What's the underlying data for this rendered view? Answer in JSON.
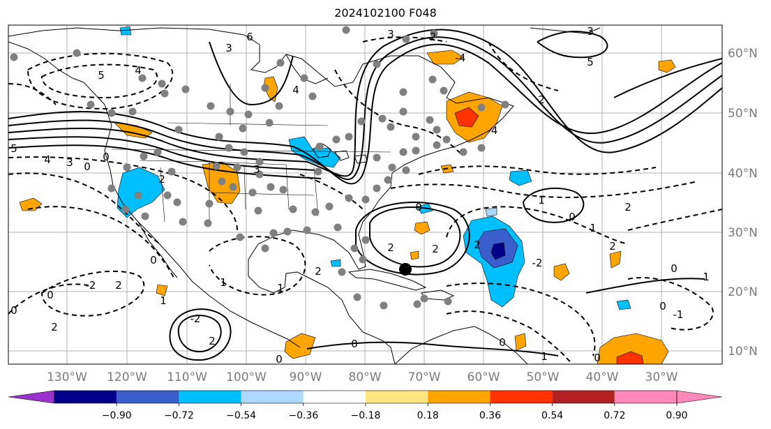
{
  "title": "2024102100 F048",
  "colors": {
    "land_outline": "#000000",
    "grid": "#b0b0b0",
    "tick_label": "#7a7a7a",
    "station": "#808080",
    "center_marker": "#000000"
  },
  "map": {
    "lon_ticks": [
      "130°W",
      "120°W",
      "110°W",
      "100°W",
      "90°W",
      "80°W",
      "70°W",
      "60°W",
      "50°W",
      "40°W",
      "30°W"
    ],
    "lat_ticks": [
      "60°N",
      "50°N",
      "40°N",
      "30°N",
      "20°N",
      "10°N"
    ],
    "contour_labels": [
      "5",
      "4",
      "3",
      "-3",
      "-4",
      "-5",
      "2",
      "-2",
      "1",
      "-1",
      "0",
      "6"
    ]
  },
  "colorbar": {
    "colors": [
      "#9933cc",
      "#00008b",
      "#3a5fcd",
      "#00bfff",
      "#add8ff",
      "#ffffff",
      "#ffe680",
      "#ffa500",
      "#ff3300",
      "#b22222",
      "#ff88bb",
      "#ff88bb"
    ],
    "labels": [
      "−0.90",
      "−0.72",
      "−0.54",
      "−0.36",
      "−0.18",
      "0.18",
      "0.36",
      "0.54",
      "0.72",
      "0.90"
    ]
  }
}
